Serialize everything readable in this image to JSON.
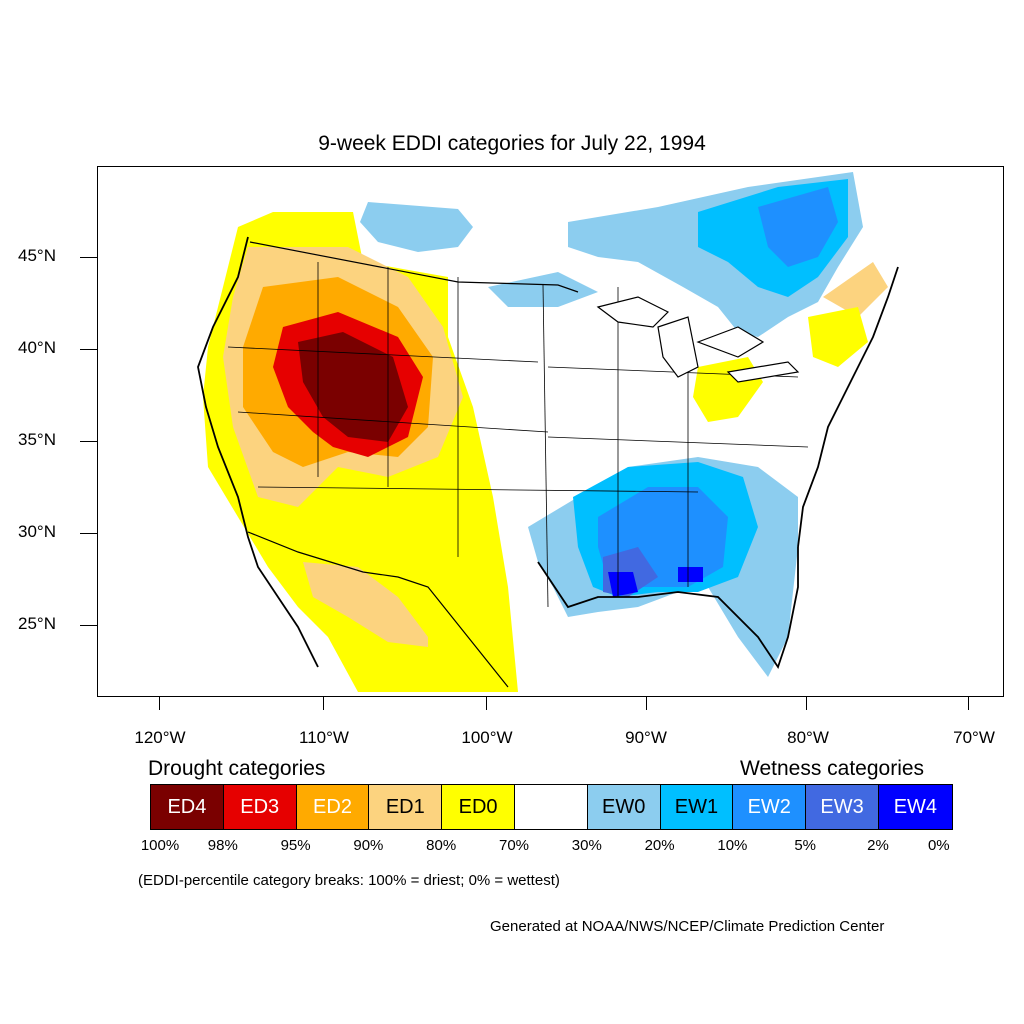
{
  "title": "9-week EDDI categories for July 22, 1994",
  "lat_labels": [
    "45°N",
    "40°N",
    "35°N",
    "30°N",
    "25°N"
  ],
  "lon_labels": [
    "120°W",
    "110°W",
    "100°W",
    "90°W",
    "80°W",
    "70°W"
  ],
  "legend": {
    "drought_heading": "Drought categories",
    "wetness_heading": "Wetness categories",
    "categories": [
      {
        "label": "ED4",
        "color": "#7a0000",
        "text_color": "#ffffff"
      },
      {
        "label": "ED3",
        "color": "#e60000",
        "text_color": "#ffffff"
      },
      {
        "label": "ED2",
        "color": "#ffaa00",
        "text_color": "#ffffff"
      },
      {
        "label": "ED1",
        "color": "#fcd37f",
        "text_color": "#000000"
      },
      {
        "label": "ED0",
        "color": "#ffff00",
        "text_color": "#000000"
      },
      {
        "label": "",
        "color": "#ffffff",
        "text_color": "#000000"
      },
      {
        "label": "EW0",
        "color": "#8ccdef",
        "text_color": "#000000"
      },
      {
        "label": "EW1",
        "color": "#00bfff",
        "text_color": "#000000"
      },
      {
        "label": "EW2",
        "color": "#1e90ff",
        "text_color": "#ffffff"
      },
      {
        "label": "EW3",
        "color": "#4169e1",
        "text_color": "#ffffff"
      },
      {
        "label": "EW4",
        "color": "#0000ff",
        "text_color": "#ffffff"
      }
    ],
    "percentiles": [
      "100%",
      "98%",
      "95%",
      "90%",
      "80%",
      "70%",
      "30%",
      "20%",
      "10%",
      "5%",
      "2%",
      "0%"
    ]
  },
  "note": "(EDDI-percentile category breaks: 100% = driest; 0% = wettest)",
  "credit": "Generated at NOAA/NWS/NCEP/Climate Prediction Center"
}
